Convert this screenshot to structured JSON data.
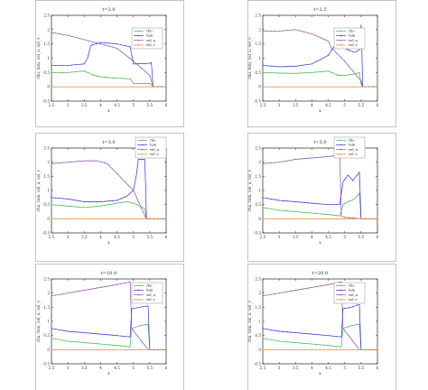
{
  "figure": {
    "type": "grid of line charts",
    "rows": 3,
    "columns": 2
  },
  "chart_data": [
    {
      "type": "line",
      "title": "t=2.0",
      "xlabel": "x",
      "ylabel": "rho, tem, vel_u, vel_v",
      "xlim": [
        2.5,
        6.0
      ],
      "ylim": [
        -0.5,
        2.5
      ],
      "xticks": [
        "2.5",
        "3",
        "3.5",
        "4",
        "4.5",
        "5",
        "5.5",
        "6"
      ],
      "yticks": [
        "-0.5",
        "0",
        "0.5",
        "1",
        "1.5",
        "2",
        "2.5"
      ],
      "legend_position": "top-right",
      "grid": false,
      "series": [
        {
          "name": "rho",
          "color": "#3cb44b",
          "x": [
            2.5,
            3.0,
            3.5,
            3.6,
            3.8,
            4.0,
            4.5,
            4.9,
            5.0,
            5.5,
            5.6,
            6.0
          ],
          "y": [
            0.5,
            0.5,
            0.55,
            0.5,
            0.4,
            0.35,
            0.3,
            0.28,
            0.12,
            0.12,
            0.0,
            0.0
          ]
        },
        {
          "name": "tem",
          "color": "#3333dd",
          "x": [
            2.5,
            3.0,
            3.5,
            3.6,
            3.7,
            4.0,
            4.5,
            4.9,
            5.0,
            5.5,
            5.55,
            5.6,
            6.0
          ],
          "y": [
            0.75,
            0.75,
            0.8,
            1.0,
            1.45,
            1.55,
            1.5,
            1.4,
            0.8,
            0.82,
            0.85,
            0.0,
            0.0
          ]
        },
        {
          "name": "vel_u",
          "color": "#8c4fa8",
          "x": [
            2.5,
            3.0,
            3.5,
            4.0,
            4.5,
            5.0,
            5.5,
            5.6,
            6.0
          ],
          "y": [
            1.9,
            1.8,
            1.65,
            1.5,
            1.35,
            0.9,
            0.4,
            0.0,
            0.0
          ]
        },
        {
          "name": "vel_v",
          "color": "#e08020",
          "x": [
            2.5,
            6.0
          ],
          "y": [
            0.0,
            0.0
          ]
        }
      ]
    },
    {
      "type": "line",
      "title": "t=2.5",
      "xlabel": "x",
      "ylabel": "rho, tem, vel_u, vel_v",
      "xlim": [
        2.5,
        6.0
      ],
      "ylim": [
        -0.5,
        2.5
      ],
      "xticks": [
        "2.5",
        "3",
        "3.5",
        "4",
        "4.5",
        "5",
        "5.5",
        "6"
      ],
      "yticks": [
        "-0.5",
        "0",
        "0.5",
        "1",
        "1.5",
        "2",
        "2.5"
      ],
      "legend_position": "top-right",
      "grid": false,
      "series": [
        {
          "name": "rho",
          "color": "#3cb44b",
          "x": [
            2.5,
            3.0,
            3.5,
            4.0,
            4.5,
            4.7,
            4.8,
            5.0,
            5.3,
            5.45,
            5.5,
            5.55,
            6.0
          ],
          "y": [
            0.5,
            0.48,
            0.47,
            0.5,
            0.55,
            0.45,
            0.4,
            0.4,
            0.45,
            0.5,
            0.1,
            0.0,
            0.0
          ]
        },
        {
          "name": "tem",
          "color": "#3333dd",
          "x": [
            2.5,
            3.0,
            3.5,
            4.0,
            4.5,
            4.7,
            4.9,
            5.1,
            5.3,
            5.45,
            5.5,
            5.52,
            5.55,
            6.0
          ],
          "y": [
            0.75,
            0.7,
            0.72,
            0.8,
            1.1,
            1.45,
            1.4,
            1.3,
            1.2,
            1.3,
            2.15,
            1.5,
            0.0,
            0.0
          ]
        },
        {
          "name": "vel_u",
          "color": "#8c4fa8",
          "x": [
            2.5,
            3.0,
            3.5,
            4.0,
            4.5,
            4.6,
            5.0,
            5.5,
            5.55,
            6.0
          ],
          "y": [
            1.95,
            1.95,
            2.0,
            1.85,
            1.6,
            1.35,
            0.9,
            0.2,
            0.0,
            0.0
          ]
        },
        {
          "name": "vel_v",
          "color": "#e08020",
          "x": [
            2.5,
            6.0
          ],
          "y": [
            0.0,
            0.0
          ]
        }
      ]
    },
    {
      "type": "line",
      "title": "t=3.0",
      "xlabel": "x",
      "ylabel": "rho, tem, vel_u, vel_v",
      "xlim": [
        2.5,
        6.0
      ],
      "ylim": [
        -0.5,
        2.5
      ],
      "xticks": [
        "2.5",
        "3",
        "3.5",
        "4",
        "4.5",
        "5",
        "5.5",
        "6"
      ],
      "yticks": [
        "-0.5",
        "0",
        "0.5",
        "1",
        "1.5",
        "2",
        "2.5"
      ],
      "legend_position": "top-right",
      "grid": false,
      "series": [
        {
          "name": "rho",
          "color": "#3cb44b",
          "x": [
            2.5,
            3.0,
            3.5,
            4.0,
            4.5,
            4.8,
            5.0,
            5.2,
            5.35,
            5.4,
            6.0
          ],
          "y": [
            0.5,
            0.45,
            0.4,
            0.45,
            0.55,
            0.6,
            0.55,
            0.45,
            0.35,
            0.0,
            0.0
          ]
        },
        {
          "name": "tem",
          "color": "#3333dd",
          "x": [
            2.5,
            3.0,
            3.5,
            4.0,
            4.5,
            4.8,
            5.0,
            5.1,
            5.15,
            5.3,
            5.35,
            5.4,
            6.0
          ],
          "y": [
            0.75,
            0.7,
            0.6,
            0.6,
            0.65,
            0.8,
            1.0,
            1.6,
            2.1,
            2.1,
            2.1,
            0.0,
            0.0
          ]
        },
        {
          "name": "vel_u",
          "color": "#8c4fa8",
          "x": [
            2.5,
            3.0,
            3.5,
            3.9,
            4.2,
            4.5,
            5.0,
            5.2,
            5.35,
            5.4,
            6.0
          ],
          "y": [
            1.95,
            2.0,
            2.05,
            2.05,
            1.95,
            1.6,
            1.0,
            0.5,
            0.1,
            0.0,
            0.0
          ]
        },
        {
          "name": "vel_v",
          "color": "#e08020",
          "x": [
            2.5,
            6.0
          ],
          "y": [
            0.0,
            0.0
          ]
        }
      ]
    },
    {
      "type": "line",
      "title": "t=5.0",
      "xlabel": "x",
      "ylabel": "rho, tem, vel_u, vel_v",
      "xlim": [
        2.5,
        6.0
      ],
      "ylim": [
        -0.5,
        2.5
      ],
      "xticks": [
        "2.5",
        "3",
        "3.5",
        "4",
        "4.5",
        "5",
        "5.5",
        "6"
      ],
      "yticks": [
        "-0.5",
        "0",
        "0.5",
        "1",
        "1.5",
        "2",
        "2.5"
      ],
      "legend_position": "top-right",
      "grid": false,
      "series": [
        {
          "name": "rho",
          "color": "#3cb44b",
          "x": [
            2.5,
            3.0,
            3.5,
            4.0,
            4.5,
            4.85,
            4.95,
            5.1,
            5.3,
            5.45,
            5.5,
            6.0
          ],
          "y": [
            0.4,
            0.3,
            0.25,
            0.2,
            0.15,
            0.1,
            0.5,
            0.6,
            0.7,
            0.9,
            0.0,
            0.0
          ]
        },
        {
          "name": "tem",
          "color": "#3333dd",
          "x": [
            2.5,
            3.0,
            3.5,
            4.0,
            4.5,
            4.85,
            4.95,
            5.1,
            5.25,
            5.35,
            5.45,
            5.5,
            6.0
          ],
          "y": [
            0.75,
            0.65,
            0.6,
            0.55,
            0.5,
            0.5,
            1.3,
            1.55,
            1.35,
            1.5,
            1.65,
            0.0,
            0.0
          ]
        },
        {
          "name": "vel_u",
          "color": "#8c4fa8",
          "x": [
            2.5,
            3.0,
            3.5,
            4.0,
            4.5,
            4.85,
            4.9,
            5.0,
            5.5,
            5.55,
            6.0
          ],
          "y": [
            1.95,
            2.0,
            2.1,
            2.15,
            2.2,
            2.25,
            0.1,
            0.05,
            0.0,
            0.0,
            0.0
          ]
        },
        {
          "name": "vel_v",
          "color": "#e08020",
          "x": [
            2.5,
            6.0
          ],
          "y": [
            0.0,
            0.0
          ]
        }
      ]
    },
    {
      "type": "line",
      "title": "t=10.0",
      "xlabel": "x",
      "ylabel": "rho, tem, vel_u, vel_v",
      "xlim": [
        2.5,
        6.0
      ],
      "ylim": [
        -0.5,
        2.5
      ],
      "xticks": [
        "2.5",
        "3",
        "3.5",
        "4",
        "4.5",
        "5",
        "5.5",
        "6"
      ],
      "yticks": [
        "-0.5",
        "0",
        "0.5",
        "1",
        "1.5",
        "2",
        "2.5"
      ],
      "legend_position": "top-right",
      "grid": false,
      "series": [
        {
          "name": "rho",
          "color": "#3cb44b",
          "x": [
            2.5,
            3.0,
            3.5,
            4.0,
            4.5,
            4.9,
            4.95,
            5.2,
            5.45,
            5.5,
            6.0
          ],
          "y": [
            0.4,
            0.3,
            0.25,
            0.2,
            0.15,
            0.1,
            0.75,
            0.85,
            0.9,
            0.0,
            0.0
          ]
        },
        {
          "name": "tem",
          "color": "#3333dd",
          "x": [
            2.5,
            3.0,
            3.5,
            4.0,
            4.5,
            4.9,
            4.95,
            5.2,
            5.45,
            5.5,
            6.0
          ],
          "y": [
            0.75,
            0.65,
            0.6,
            0.55,
            0.5,
            0.45,
            1.45,
            1.5,
            1.55,
            0.0,
            0.0
          ]
        },
        {
          "name": "vel_u",
          "color": "#8c4fa8",
          "x": [
            2.5,
            3.0,
            3.5,
            4.0,
            4.5,
            4.9,
            4.95,
            5.45,
            5.5,
            6.0
          ],
          "y": [
            1.9,
            2.0,
            2.1,
            2.2,
            2.3,
            2.4,
            0.75,
            0.0,
            0.0,
            0.0
          ]
        },
        {
          "name": "vel_v",
          "color": "#e08020",
          "x": [
            2.5,
            6.0
          ],
          "y": [
            0.0,
            0.0
          ]
        }
      ]
    },
    {
      "type": "line",
      "title": "t=20.0",
      "xlabel": "x",
      "ylabel": "rho, tem, vel_u, vel_v",
      "xlim": [
        2.5,
        6.0
      ],
      "ylim": [
        -0.5,
        2.5
      ],
      "xticks": [
        "2.5",
        "3",
        "3.5",
        "4",
        "4.5",
        "5",
        "5.5",
        "6"
      ],
      "yticks": [
        "-0.5",
        "0",
        "0.5",
        "1",
        "1.5",
        "2",
        "2.5"
      ],
      "legend_position": "top-right",
      "grid": false,
      "series": [
        {
          "name": "rho",
          "color": "#3cb44b",
          "x": [
            2.5,
            3.0,
            3.5,
            4.0,
            4.5,
            4.9,
            4.95,
            5.2,
            5.45,
            5.5,
            6.0
          ],
          "y": [
            0.4,
            0.3,
            0.25,
            0.2,
            0.15,
            0.1,
            0.75,
            0.85,
            0.9,
            0.0,
            0.0
          ]
        },
        {
          "name": "tem",
          "color": "#3333dd",
          "x": [
            2.5,
            3.0,
            3.5,
            4.0,
            4.5,
            4.9,
            4.95,
            5.2,
            5.45,
            5.5,
            6.0
          ],
          "y": [
            0.75,
            0.65,
            0.6,
            0.55,
            0.5,
            0.45,
            1.45,
            1.5,
            1.6,
            0.0,
            0.0
          ]
        },
        {
          "name": "vel_u",
          "color": "#8c4fa8",
          "x": [
            2.5,
            3.0,
            3.5,
            4.0,
            4.5,
            4.9,
            4.95,
            5.45,
            5.5,
            6.0
          ],
          "y": [
            1.9,
            2.0,
            2.1,
            2.2,
            2.3,
            2.4,
            0.75,
            0.0,
            0.0,
            0.0
          ]
        },
        {
          "name": "vel_v",
          "color": "#e08020",
          "x": [
            2.5,
            6.0
          ],
          "y": [
            0.0,
            0.0
          ]
        }
      ]
    }
  ]
}
